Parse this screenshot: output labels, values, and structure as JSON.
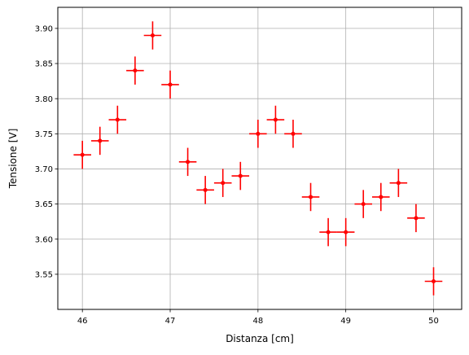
{
  "chart_data": {
    "type": "scatter",
    "title": "",
    "xlabel": "Distanza [cm]",
    "ylabel": "Tensione [V]",
    "xlim": [
      45.72,
      50.32
    ],
    "ylim": [
      3.5,
      3.93
    ],
    "xticks": [
      46,
      47,
      48,
      49,
      50
    ],
    "xtick_labels": [
      "46",
      "47",
      "48",
      "49",
      "50"
    ],
    "yticks": [
      3.55,
      3.6,
      3.65,
      3.7,
      3.75,
      3.8,
      3.85,
      3.9
    ],
    "ytick_labels": [
      "3.55",
      "3.60",
      "3.65",
      "3.70",
      "3.75",
      "3.80",
      "3.85",
      "3.90"
    ],
    "grid": true,
    "legend": "none",
    "series": [
      {
        "color": "#ff0000",
        "marker": "point",
        "x": [
          46.0,
          46.2,
          46.4,
          46.6,
          46.8,
          47.0,
          47.2,
          47.4,
          47.6,
          47.8,
          48.0,
          48.2,
          48.4,
          48.6,
          48.8,
          49.0,
          49.2,
          49.4,
          49.6,
          49.8,
          50.0
        ],
        "y": [
          3.72,
          3.74,
          3.77,
          3.84,
          3.89,
          3.82,
          3.71,
          3.67,
          3.68,
          3.69,
          3.75,
          3.77,
          3.75,
          3.66,
          3.61,
          3.61,
          3.65,
          3.66,
          3.68,
          3.63,
          3.54
        ],
        "xerr": 0.1,
        "yerr": 0.02
      }
    ]
  }
}
